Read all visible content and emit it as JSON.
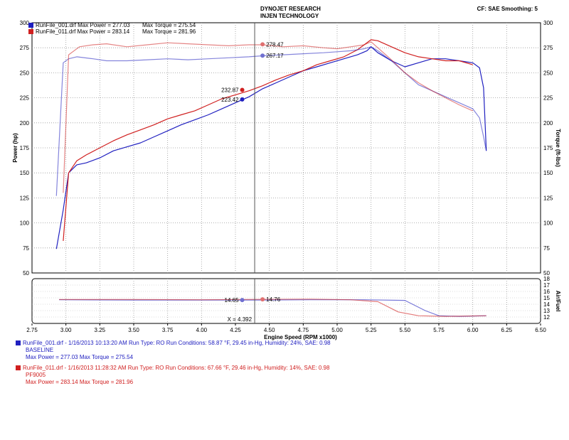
{
  "header": {
    "title_line1": "DYNOJET RESEARCH",
    "title_line2": "INJEN TECHNOLOGY",
    "correction": "CF: SAE  Smoothing: 5"
  },
  "legend": [
    {
      "text": "RunFile_001.drf Max Power = 277.03",
      "torque_text": "Max Torque = 275.54",
      "color": "#2020c0"
    },
    {
      "text": "RunFile_011.drf Max Power = 283.14",
      "torque_text": "Max Torque = 281.96",
      "color": "#d02020"
    }
  ],
  "cursor_values": {
    "power_red": "232.87",
    "power_blue": "223.42",
    "torque_red": "278.47",
    "torque_blue": "267.17",
    "afr_blue": "14.65",
    "afr_red": "14.76",
    "x_readout": "X = 4.392"
  },
  "runs": [
    {
      "line1": "RunFile_001.drf - 1/16/2013 10:13:20 AM  Run Type: RO  Run Conditions: 58.87 °F, 29.45 in-Hg,  Humidity:  24%, SAE: 0.98",
      "line2": "BASELINE",
      "line3": "Max Power = 277.03  Max Torque = 275.54",
      "color": "#2020c0"
    },
    {
      "line1": "RunFile_011.drf - 1/16/2013 11:28:32 AM  Run Type: RO  Run Conditions: 67.66 °F, 29.46 in-Hg,  Humidity:  14%, SAE: 0.98",
      "line2": "PF9005",
      "line3": "Max Power = 283.14  Max Torque = 281.96",
      "color": "#d02020"
    }
  ],
  "chart_data": [
    {
      "type": "line",
      "title": "DYNOJET RESEARCH",
      "subtitle": "INJEN TECHNOLOGY",
      "xlabel": "",
      "ylabel": "Power (hp)",
      "y2label": "Torque (ft-lbs)",
      "xlim": [
        2.75,
        6.5
      ],
      "ylim": [
        50,
        300
      ],
      "y2lim": [
        50,
        300
      ],
      "yticks": [
        50,
        75,
        100,
        125,
        150,
        175,
        200,
        225,
        250,
        275,
        300
      ],
      "cursor_x": 4.392,
      "grid": true,
      "legend_position": "top-left",
      "series": [
        {
          "name": "RunFile_001.drf Power",
          "axis": "left",
          "color": "#2020c0",
          "x": [
            2.93,
            2.98,
            3.02,
            3.08,
            3.15,
            3.25,
            3.35,
            3.45,
            3.55,
            3.65,
            3.75,
            3.85,
            3.95,
            4.05,
            4.15,
            4.25,
            4.35,
            4.45,
            4.55,
            4.65,
            4.75,
            4.85,
            4.95,
            5.05,
            5.15,
            5.22,
            5.25,
            5.3,
            5.4,
            5.5,
            5.6,
            5.7,
            5.8,
            5.9,
            6.0,
            6.05,
            6.08,
            6.1
          ],
          "y": [
            74,
            113,
            150,
            158,
            160,
            165,
            172,
            176,
            180,
            186,
            192,
            198,
            203,
            208,
            214,
            220,
            226,
            234,
            240,
            246,
            252,
            256,
            260,
            264,
            268,
            272,
            276,
            270,
            262,
            256,
            260,
            264,
            264,
            262,
            260,
            255,
            235,
            172
          ]
        },
        {
          "name": "RunFile_011.drf Power",
          "axis": "left",
          "color": "#d02020",
          "x": [
            2.98,
            3.02,
            3.08,
            3.15,
            3.25,
            3.35,
            3.45,
            3.55,
            3.65,
            3.75,
            3.85,
            3.95,
            4.05,
            4.15,
            4.25,
            4.35,
            4.45,
            4.55,
            4.65,
            4.75,
            4.85,
            4.95,
            5.05,
            5.15,
            5.25,
            5.3,
            5.4,
            5.5,
            5.6,
            5.7,
            5.8,
            5.9,
            6.0
          ],
          "y": [
            82,
            150,
            162,
            168,
            175,
            182,
            188,
            193,
            198,
            204,
            208,
            212,
            218,
            224,
            228,
            232,
            237,
            243,
            248,
            252,
            258,
            262,
            266,
            273,
            283,
            282,
            276,
            270,
            266,
            264,
            262,
            262,
            258
          ]
        },
        {
          "name": "RunFile_001.drf Torque",
          "axis": "right",
          "color": "#2020c0",
          "x": [
            2.93,
            2.98,
            3.02,
            3.08,
            3.2,
            3.3,
            3.45,
            3.6,
            3.75,
            3.9,
            4.05,
            4.2,
            4.35,
            4.45,
            4.6,
            4.75,
            4.9,
            5.0,
            5.1,
            5.2,
            5.25,
            5.3,
            5.4,
            5.5,
            5.6,
            5.7,
            5.8,
            5.9,
            6.0,
            6.05,
            6.08,
            6.1
          ],
          "y": [
            127,
            260,
            264,
            266,
            264,
            262,
            262,
            263,
            264,
            263,
            264,
            265,
            266,
            267,
            268,
            269,
            270,
            271,
            272,
            274,
            276,
            272,
            262,
            250,
            238,
            232,
            226,
            220,
            214,
            205,
            186,
            172
          ]
        },
        {
          "name": "RunFile_011.drf Torque",
          "axis": "right",
          "color": "#d02020",
          "x": [
            2.98,
            3.02,
            3.1,
            3.2,
            3.3,
            3.45,
            3.6,
            3.75,
            3.9,
            4.05,
            4.2,
            4.35,
            4.45,
            4.6,
            4.75,
            4.9,
            5.0,
            5.1,
            5.2,
            5.25,
            5.3,
            5.4,
            5.5,
            5.6,
            5.7,
            5.8,
            5.9,
            6.0
          ],
          "y": [
            130,
            268,
            276,
            278,
            279,
            276,
            278,
            280,
            279,
            278,
            277,
            278,
            278,
            276,
            277,
            275,
            274,
            276,
            278,
            281,
            275,
            263,
            250,
            240,
            232,
            225,
            218,
            212
          ]
        }
      ]
    },
    {
      "type": "line",
      "xlabel": "Engine Speed (RPM x1000)",
      "ylabel": "Air/Fuel",
      "xlim": [
        2.75,
        6.5
      ],
      "ylim": [
        11,
        18
      ],
      "yticks": [
        11,
        12,
        13,
        14,
        15,
        16,
        17,
        18
      ],
      "xticks": [
        "2.75",
        "3.00",
        "3.25",
        "3.50",
        "3.75",
        "4.00",
        "4.25",
        "4.50",
        "4.75",
        "5.00",
        "5.25",
        "5.50",
        "5.75",
        "6.00",
        "6.25",
        "6.50"
      ],
      "cursor_x": 4.392,
      "grid": true,
      "series": [
        {
          "name": "RunFile_001.drf A/F",
          "color": "#2020c0",
          "x": [
            2.95,
            3.5,
            4.0,
            4.39,
            4.8,
            5.2,
            5.5,
            5.65,
            5.75,
            5.9,
            6.1
          ],
          "y": [
            14.7,
            14.65,
            14.65,
            14.65,
            14.7,
            14.7,
            14.6,
            13.0,
            12.2,
            12.1,
            12.2
          ]
        },
        {
          "name": "RunFile_011.drf A/F",
          "color": "#d02020",
          "x": [
            2.95,
            3.5,
            4.0,
            4.39,
            4.8,
            5.1,
            5.3,
            5.45,
            5.6,
            5.8,
            6.1
          ],
          "y": [
            14.75,
            14.75,
            14.7,
            14.76,
            14.8,
            14.7,
            14.4,
            12.8,
            12.2,
            12.1,
            12.2
          ]
        }
      ]
    }
  ]
}
